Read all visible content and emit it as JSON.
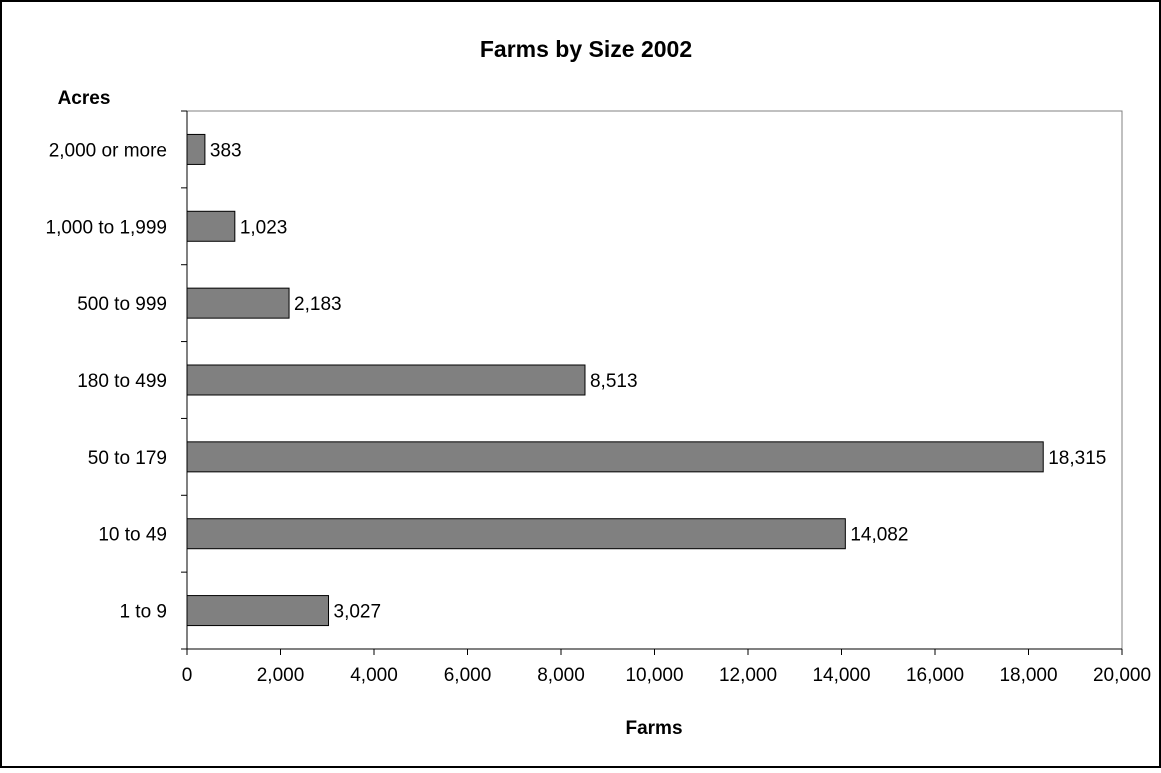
{
  "chart_data": {
    "type": "bar",
    "orientation": "horizontal",
    "title": "Farms by Size 2002",
    "xlabel": "Farms",
    "ylabel": "Acres",
    "categories": [
      "2,000 or more",
      "1,000 to 1,999",
      "500 to 999",
      "180 to 499",
      "50 to 179",
      "10 to 49",
      "1 to 9"
    ],
    "values": [
      383,
      1023,
      2183,
      8513,
      18315,
      14082,
      3027
    ],
    "value_labels": [
      "383",
      "1,023",
      "2,183",
      "8,513",
      "18,315",
      "14,082",
      "3,027"
    ],
    "xlim": [
      0,
      20000
    ],
    "xticks": [
      0,
      2000,
      4000,
      6000,
      8000,
      10000,
      12000,
      14000,
      16000,
      18000,
      20000
    ],
    "xtick_labels": [
      "0",
      "2,000",
      "4,000",
      "6,000",
      "8,000",
      "10,000",
      "12,000",
      "14,000",
      "16,000",
      "18,000",
      "20,000"
    ],
    "grid": false,
    "legend": "none",
    "bar_color": "#808080",
    "bar_edge_color": "#000000"
  }
}
